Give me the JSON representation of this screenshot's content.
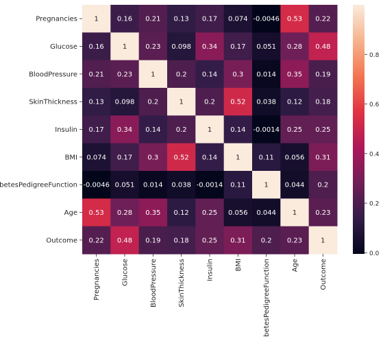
{
  "chart_data": {
    "type": "heatmap",
    "title": "",
    "xlabel": "",
    "ylabel": "",
    "rows": [
      "Pregnancies",
      "Glucose",
      "BloodPressure",
      "SkinThickness",
      "Insulin",
      "BMI",
      "DiabetesPedigreeFunction",
      "Age",
      "Outcome"
    ],
    "cols": [
      "Pregnancies",
      "Glucose",
      "BloodPressure",
      "SkinThickness",
      "Insulin",
      "BMI",
      "DiabetesPedigreeFunction",
      "Age",
      "Outcome"
    ],
    "values": [
      [
        1,
        0.16,
        0.21,
        0.13,
        0.17,
        0.074,
        -0.0046,
        0.53,
        0.22
      ],
      [
        0.16,
        1,
        0.23,
        0.098,
        0.34,
        0.17,
        0.051,
        0.28,
        0.48
      ],
      [
        0.21,
        0.23,
        1,
        0.2,
        0.14,
        0.3,
        0.014,
        0.35,
        0.19
      ],
      [
        0.13,
        0.098,
        0.2,
        1,
        0.2,
        0.52,
        0.038,
        0.12,
        0.18
      ],
      [
        0.17,
        0.34,
        0.14,
        0.2,
        1,
        0.14,
        -0.0014,
        0.25,
        0.25
      ],
      [
        0.074,
        0.17,
        0.3,
        0.52,
        0.14,
        1,
        0.11,
        0.056,
        0.31
      ],
      [
        -0.0046,
        0.051,
        0.014,
        0.038,
        -0.0014,
        0.11,
        1,
        0.044,
        0.2
      ],
      [
        0.53,
        0.28,
        0.35,
        0.12,
        0.25,
        0.056,
        0.044,
        1,
        0.23
      ],
      [
        0.22,
        0.48,
        0.19,
        0.18,
        0.25,
        0.31,
        0.2,
        0.23,
        1
      ]
    ],
    "labels": [
      [
        "1",
        "0.16",
        "0.21",
        "0.13",
        "0.17",
        "0.074",
        "-0.0046",
        "0.53",
        "0.22"
      ],
      [
        "0.16",
        "1",
        "0.23",
        "0.098",
        "0.34",
        "0.17",
        "0.051",
        "0.28",
        "0.48"
      ],
      [
        "0.21",
        "0.23",
        "1",
        "0.2",
        "0.14",
        "0.3",
        "0.014",
        "0.35",
        "0.19"
      ],
      [
        "0.13",
        "0.098",
        "0.2",
        "1",
        "0.2",
        "0.52",
        "0.038",
        "0.12",
        "0.18"
      ],
      [
        "0.17",
        "0.34",
        "0.14",
        "0.2",
        "1",
        "0.14",
        "-0.0014",
        "0.25",
        "0.25"
      ],
      [
        "0.074",
        "0.17",
        "0.3",
        "0.52",
        "0.14",
        "1",
        "0.11",
        "0.056",
        "0.31"
      ],
      [
        "-0.0046",
        "0.051",
        "0.014",
        "0.038",
        "-0.0014",
        "0.11",
        "1",
        "0.044",
        "0.2"
      ],
      [
        "0.53",
        "0.28",
        "0.35",
        "0.12",
        "0.25",
        "0.056",
        "0.044",
        "1",
        "0.23"
      ],
      [
        "0.22",
        "0.48",
        "0.19",
        "0.18",
        "0.25",
        "0.31",
        "0.2",
        "0.23",
        "1"
      ]
    ],
    "colormap": "rocket",
    "colormap_stops": [
      "#03051a",
      "#331d48",
      "#701f57",
      "#ae1759",
      "#e13342",
      "#f37651",
      "#f6b48f",
      "#faebdd"
    ],
    "colorbar": {
      "vmin": -0.0046,
      "vmax": 1,
      "ticks": [
        0.0,
        0.2,
        0.4,
        0.6,
        0.8
      ],
      "tick_labels": [
        "0.0",
        "0.2",
        "0.4",
        "0.6",
        "0.8"
      ]
    },
    "text_colors": {
      "light": "#ffffff",
      "dark": "#262626"
    }
  }
}
